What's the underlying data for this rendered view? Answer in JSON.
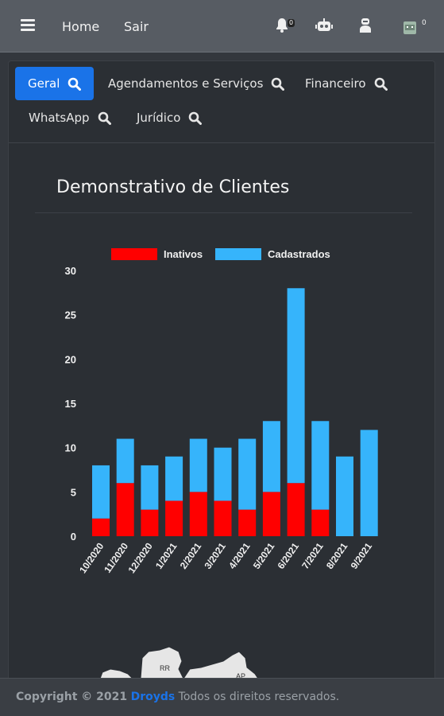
{
  "navbar": {
    "home_label": "Home",
    "logout_label": "Sair",
    "notifications_count": "0",
    "profile_count": "0",
    "icons": [
      "menu-icon",
      "bell-icon",
      "robot-icon",
      "user-icon",
      "avatar-icon"
    ]
  },
  "tabs": [
    {
      "label": "Geral",
      "active": true
    },
    {
      "label": "Agendamentos e Serviços",
      "active": false
    },
    {
      "label": "Financeiro",
      "active": false
    },
    {
      "label": "WhatsApp",
      "active": false
    },
    {
      "label": "Jurídico",
      "active": false
    }
  ],
  "section": {
    "title": "Demonstrativo de Clientes"
  },
  "chart_data": {
    "type": "bar",
    "stacked": true,
    "categories": [
      "10/2020",
      "11/2020",
      "12/2020",
      "1/2021",
      "2/2021",
      "3/2021",
      "4/2021",
      "5/2021",
      "6/2021",
      "7/2021",
      "8/2021",
      "9/2021"
    ],
    "series": [
      {
        "name": "Inativos",
        "color": "#ff0000",
        "values": [
          2,
          6,
          3,
          4,
          5,
          4,
          3,
          5,
          6,
          3,
          0,
          0
        ]
      },
      {
        "name": "Cadastrados",
        "color": "#36b4fb",
        "values": [
          6,
          5,
          5,
          5,
          6,
          6,
          8,
          8,
          22,
          10,
          9,
          12
        ]
      }
    ],
    "ylim": [
      0,
      30
    ],
    "yticks": [
      0,
      5,
      10,
      15,
      20,
      25,
      30
    ],
    "legend_position": "top",
    "grid": false
  },
  "map": {
    "labels": [
      "RR",
      "AP"
    ]
  },
  "footer": {
    "copyright": "Copyright © 2021",
    "brand": "Droyds",
    "rights": "Todos os direitos reservados."
  },
  "colors": {
    "accent": "#1a73e8",
    "navbar": "#575c63",
    "card": "#2b2f34"
  }
}
